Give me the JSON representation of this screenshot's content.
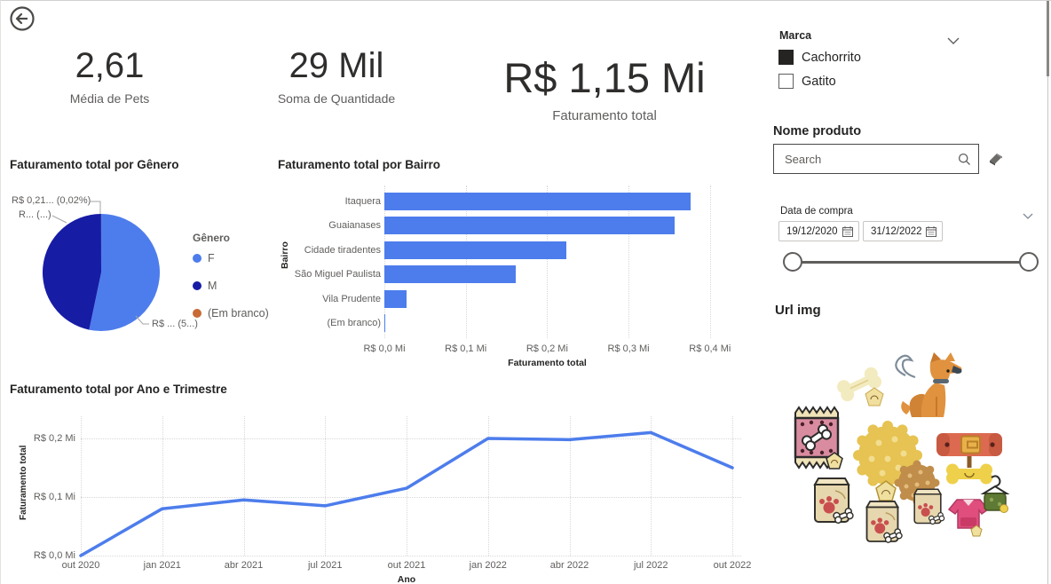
{
  "window": {
    "back_label": "Back"
  },
  "kpis": [
    {
      "value": "2,61",
      "label": "Média de Pets"
    },
    {
      "value": "29 Mil",
      "label": "Soma de Quantidade"
    },
    {
      "value": "R$ 1,15 Mi",
      "label": "Faturamento total"
    }
  ],
  "filters": {
    "marca": {
      "title": "Marca",
      "options": [
        {
          "label": "Cachorrito",
          "checked": true
        },
        {
          "label": "Gatito",
          "checked": false
        }
      ]
    },
    "nome_produto": {
      "title": "Nome produto",
      "search_placeholder": "Search"
    },
    "data_compra": {
      "title": "Data de compra",
      "start_date": "19/12/2020",
      "end_date": "31/12/2022"
    },
    "url_img": {
      "title": "Url img"
    }
  },
  "colors": {
    "accent_blue": "#4D7DEC",
    "navy": "#171CA5",
    "orange": "#C76A35",
    "text_dark": "#252423",
    "text_gray": "#605E5C"
  },
  "chart_data": [
    {
      "type": "pie",
      "title": "Faturamento total por Gênero",
      "legend_title": "Gênero",
      "legend_position": "right",
      "slices": [
        {
          "name": "F",
          "pct": 53.3,
          "color": "#4D7DEC",
          "callout": "R$ ... (5...)"
        },
        {
          "name": "M",
          "pct": 46.68,
          "color": "#171CA5",
          "callout": "R... (...)"
        },
        {
          "name": "(Em branco)",
          "pct": 0.02,
          "color": "#C76A35",
          "callout": "R$ 0,21... (0,02%)"
        }
      ]
    },
    {
      "type": "bar",
      "title": "Faturamento total por Bairro",
      "xlabel": "Faturamento total",
      "ylabel": "Bairro",
      "categories": [
        "Itaquera",
        "Guaianases",
        "Cidade tiradentes",
        "São Miguel Paulista",
        "Vila Prudente",
        "(Em branco)"
      ],
      "values_mi": [
        0.376,
        0.357,
        0.224,
        0.161,
        0.027,
        0.001
      ],
      "xticks": [
        "R$ 0,0 Mi",
        "R$ 0,1 Mi",
        "R$ 0,2 Mi",
        "R$ 0,3 Mi",
        "R$ 0,4 Mi"
      ],
      "xlim": [
        0,
        0.4
      ],
      "grid": true
    },
    {
      "type": "line",
      "title": "Faturamento total por Ano e Trimestre",
      "xlabel": "Ano",
      "ylabel": "Faturamento total",
      "x": [
        "out 2020",
        "jan 2021",
        "abr 2021",
        "jul 2021",
        "out 2021",
        "jan 2022",
        "abr 2022",
        "jul 2022",
        "out 2022"
      ],
      "values_mi": [
        0.0,
        0.08,
        0.095,
        0.085,
        0.115,
        0.2,
        0.198,
        0.21,
        0.15
      ],
      "yticks": [
        "R$ 0,0 Mi",
        "R$ 0,1 Mi",
        "R$ 0,2 Mi"
      ],
      "ylim": [
        0,
        0.25
      ],
      "grid": true
    }
  ]
}
